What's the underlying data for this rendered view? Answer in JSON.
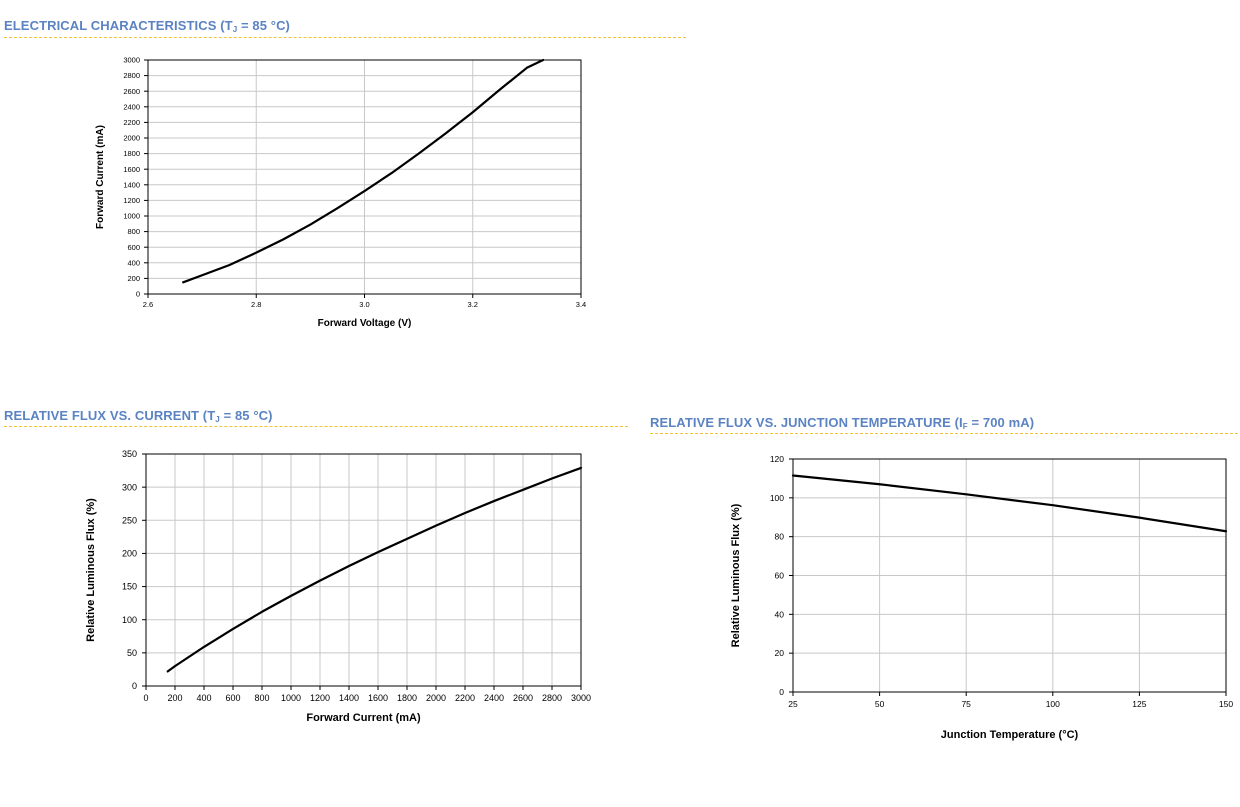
{
  "sections": [
    {
      "title_pre": "ELECTRICAL CHARACTERISTICS (T",
      "title_sub": "J",
      "title_post": " = 85 °C)"
    },
    {
      "title_pre": "RELATIVE FLUX VS. CURRENT (T",
      "title_sub": "J",
      "title_post": " = 85 °C)"
    },
    {
      "title_pre": "RELATIVE FLUX VS. JUNCTION TEMPERATURE (I",
      "title_sub": "F",
      "title_post": " = 700 mA)"
    }
  ],
  "colors": {
    "title": "#5b83c3",
    "rule": "#f2c335",
    "grid": "#c8c8c8",
    "line": "#000000"
  },
  "chart_data": [
    {
      "type": "line",
      "xlabel": "Forward Voltage (V)",
      "ylabel": "Forward Current (mA)",
      "xlim": [
        2.6,
        3.4
      ],
      "ylim": [
        0,
        3000
      ],
      "x_ticks": [
        "2.6",
        "2.8",
        "3.0",
        "3.2",
        "3.4"
      ],
      "y_ticks": [
        "0",
        "200",
        "400",
        "600",
        "800",
        "1000",
        "1200",
        "1400",
        "1600",
        "1800",
        "2000",
        "2200",
        "2400",
        "2600",
        "2800",
        "3000"
      ],
      "grid": true,
      "series": [
        {
          "x": [
            2.665,
            2.7,
            2.75,
            2.8,
            2.85,
            2.9,
            2.95,
            3.0,
            3.05,
            3.1,
            3.15,
            3.2,
            3.25,
            3.3,
            3.33
          ],
          "y": [
            150,
            240,
            370,
            530,
            700,
            890,
            1100,
            1320,
            1550,
            1800,
            2060,
            2330,
            2620,
            2900,
            3000
          ]
        }
      ]
    },
    {
      "type": "line",
      "xlabel": "Forward Current (mA)",
      "ylabel": "Relative Luminous Flux (%)",
      "xlim": [
        0,
        3000
      ],
      "ylim": [
        0,
        350
      ],
      "x_ticks": [
        "0",
        "200",
        "400",
        "600",
        "800",
        "1000",
        "1200",
        "1400",
        "1600",
        "1800",
        "2000",
        "2200",
        "2400",
        "2600",
        "2800",
        "3000"
      ],
      "y_ticks": [
        "0",
        "50",
        "100",
        "150",
        "200",
        "250",
        "300",
        "350"
      ],
      "grid": true,
      "series": [
        {
          "x": [
            150,
            200,
            400,
            600,
            800,
            1000,
            1200,
            1400,
            1600,
            1800,
            2000,
            2200,
            2400,
            2600,
            2800,
            3000
          ],
          "y": [
            22,
            30,
            59,
            86,
            112,
            136,
            159,
            181,
            202,
            222,
            242,
            261,
            279,
            296,
            313,
            329
          ]
        }
      ]
    },
    {
      "type": "line",
      "xlabel": "Junction Temperature (°C)",
      "ylabel": "Relative Luminous Flux (%)",
      "xlim": [
        25,
        150
      ],
      "ylim": [
        0,
        120
      ],
      "x_ticks": [
        "25",
        "50",
        "75",
        "100",
        "125",
        "150"
      ],
      "y_ticks": [
        "0",
        "20",
        "40",
        "60",
        "80",
        "100",
        "120"
      ],
      "grid": true,
      "series": [
        {
          "x": [
            25,
            50,
            75,
            100,
            125,
            150
          ],
          "y": [
            111.5,
            107,
            101.8,
            96.2,
            89.8,
            82.8
          ]
        }
      ]
    }
  ]
}
